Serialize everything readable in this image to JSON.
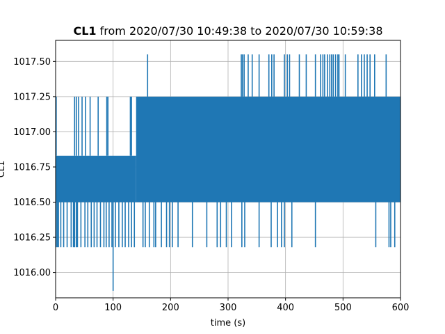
{
  "chart_data": {
    "type": "line",
    "title_bold": "CL1",
    "title_rest": " from 2020/07/30 10:49:38 to 2020/07/30 10:59:38",
    "xlabel": "time (s)",
    "ylabel": "CL1",
    "xlim": [
      0,
      600
    ],
    "ylim": [
      1015.82,
      1017.65
    ],
    "xticks": [
      0,
      100,
      200,
      300,
      400,
      500,
      600
    ],
    "yticks": [
      1016.0,
      1016.25,
      1016.5,
      1016.75,
      1017.0,
      1017.25,
      1017.5
    ],
    "ytick_labels": [
      "1016.00",
      "1016.25",
      "1016.50",
      "1016.75",
      "1017.00",
      "1017.25",
      "1017.50"
    ],
    "grid": true,
    "line_color": "#1f77b4",
    "series": [
      {
        "segments": [
          {
            "x_start": 0,
            "x_end": 140,
            "low": 1016.5,
            "high": 1016.83
          },
          {
            "x_start": 140,
            "x_end": 600,
            "low": 1016.5,
            "high": 1017.25
          }
        ],
        "dips": [
          {
            "x": 1,
            "value": 1016.18
          },
          {
            "x": 3,
            "value": 1016.18
          },
          {
            "x": 5,
            "value": 1016.18
          },
          {
            "x": 9,
            "value": 1016.18
          },
          {
            "x": 14,
            "value": 1016.18
          },
          {
            "x": 20,
            "value": 1016.18
          },
          {
            "x": 27,
            "value": 1016.18
          },
          {
            "x": 31,
            "value": 1016.18
          },
          {
            "x": 33,
            "value": 1016.18
          },
          {
            "x": 36,
            "value": 1016.18
          },
          {
            "x": 38,
            "value": 1016.18
          },
          {
            "x": 44,
            "value": 1016.18
          },
          {
            "x": 51,
            "value": 1016.18
          },
          {
            "x": 56,
            "value": 1016.18
          },
          {
            "x": 62,
            "value": 1016.18
          },
          {
            "x": 67,
            "value": 1016.18
          },
          {
            "x": 72,
            "value": 1016.18
          },
          {
            "x": 78,
            "value": 1016.18
          },
          {
            "x": 84,
            "value": 1016.18
          },
          {
            "x": 88,
            "value": 1016.18
          },
          {
            "x": 93,
            "value": 1016.18
          },
          {
            "x": 98,
            "value": 1016.18
          },
          {
            "x": 100,
            "value": 1015.87
          },
          {
            "x": 104,
            "value": 1016.18
          },
          {
            "x": 110,
            "value": 1016.18
          },
          {
            "x": 116,
            "value": 1016.18
          },
          {
            "x": 121,
            "value": 1016.18
          },
          {
            "x": 127,
            "value": 1016.18
          },
          {
            "x": 132,
            "value": 1016.18
          },
          {
            "x": 137,
            "value": 1016.18
          },
          {
            "x": 152,
            "value": 1016.18
          },
          {
            "x": 156,
            "value": 1016.18
          },
          {
            "x": 163,
            "value": 1016.18
          },
          {
            "x": 171,
            "value": 1016.18
          },
          {
            "x": 174,
            "value": 1016.18
          },
          {
            "x": 184,
            "value": 1016.18
          },
          {
            "x": 193,
            "value": 1016.18
          },
          {
            "x": 198,
            "value": 1016.18
          },
          {
            "x": 203,
            "value": 1016.18
          },
          {
            "x": 213,
            "value": 1016.18
          },
          {
            "x": 238,
            "value": 1016.18
          },
          {
            "x": 263,
            "value": 1016.18
          },
          {
            "x": 281,
            "value": 1016.18
          },
          {
            "x": 287,
            "value": 1016.18
          },
          {
            "x": 297,
            "value": 1016.18
          },
          {
            "x": 306,
            "value": 1016.18
          },
          {
            "x": 324,
            "value": 1016.18
          },
          {
            "x": 329,
            "value": 1016.18
          },
          {
            "x": 354,
            "value": 1016.18
          },
          {
            "x": 375,
            "value": 1016.18
          },
          {
            "x": 386,
            "value": 1016.18
          },
          {
            "x": 393,
            "value": 1016.18
          },
          {
            "x": 398,
            "value": 1016.18
          },
          {
            "x": 411,
            "value": 1016.18
          },
          {
            "x": 452,
            "value": 1016.18
          },
          {
            "x": 557,
            "value": 1016.18
          },
          {
            "x": 580,
            "value": 1016.18
          },
          {
            "x": 583,
            "value": 1016.18
          },
          {
            "x": 590,
            "value": 1016.18
          }
        ],
        "spikes_high": [
          {
            "x": 1,
            "value": 1017.25
          },
          {
            "x": 33,
            "value": 1017.25
          },
          {
            "x": 36,
            "value": 1017.25
          },
          {
            "x": 40,
            "value": 1017.25
          },
          {
            "x": 46,
            "value": 1017.25
          },
          {
            "x": 52,
            "value": 1017.25
          },
          {
            "x": 60,
            "value": 1017.25
          },
          {
            "x": 74,
            "value": 1017.25
          },
          {
            "x": 89,
            "value": 1017.25
          },
          {
            "x": 91,
            "value": 1017.25
          },
          {
            "x": 130,
            "value": 1017.25
          },
          {
            "x": 132,
            "value": 1017.25
          },
          {
            "x": 160,
            "value": 1017.55
          },
          {
            "x": 323,
            "value": 1017.55
          },
          {
            "x": 325,
            "value": 1017.55
          },
          {
            "x": 328,
            "value": 1017.55
          },
          {
            "x": 335,
            "value": 1017.55
          },
          {
            "x": 342,
            "value": 1017.55
          },
          {
            "x": 354,
            "value": 1017.55
          },
          {
            "x": 371,
            "value": 1017.55
          },
          {
            "x": 376,
            "value": 1017.55
          },
          {
            "x": 380,
            "value": 1017.55
          },
          {
            "x": 398,
            "value": 1017.55
          },
          {
            "x": 403,
            "value": 1017.55
          },
          {
            "x": 407,
            "value": 1017.55
          },
          {
            "x": 424,
            "value": 1017.55
          },
          {
            "x": 436,
            "value": 1017.55
          },
          {
            "x": 452,
            "value": 1017.55
          },
          {
            "x": 461,
            "value": 1017.55
          },
          {
            "x": 465,
            "value": 1017.55
          },
          {
            "x": 468,
            "value": 1017.55
          },
          {
            "x": 473,
            "value": 1017.55
          },
          {
            "x": 477,
            "value": 1017.55
          },
          {
            "x": 480,
            "value": 1017.55
          },
          {
            "x": 483,
            "value": 1017.55
          },
          {
            "x": 487,
            "value": 1017.55
          },
          {
            "x": 491,
            "value": 1017.55
          },
          {
            "x": 493,
            "value": 1017.55
          },
          {
            "x": 504,
            "value": 1017.55
          },
          {
            "x": 526,
            "value": 1017.55
          },
          {
            "x": 532,
            "value": 1017.55
          },
          {
            "x": 537,
            "value": 1017.55
          },
          {
            "x": 542,
            "value": 1017.55
          },
          {
            "x": 547,
            "value": 1017.55
          },
          {
            "x": 555,
            "value": 1017.55
          },
          {
            "x": 575,
            "value": 1017.55
          }
        ]
      }
    ]
  }
}
